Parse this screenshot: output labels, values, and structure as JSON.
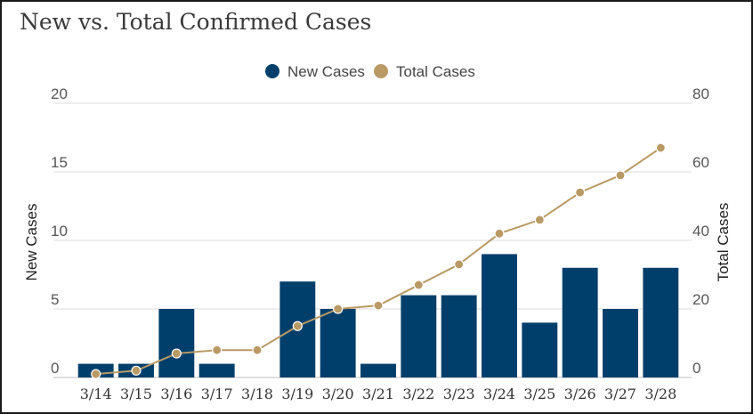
{
  "chart_data": {
    "type": "bar",
    "title": "New vs. Total Confirmed Cases",
    "categories": [
      "3/14",
      "3/15",
      "3/16",
      "3/17",
      "3/18",
      "3/19",
      "3/20",
      "3/21",
      "3/22",
      "3/23",
      "3/24",
      "3/25",
      "3/26",
      "3/27",
      "3/28"
    ],
    "series": [
      {
        "name": "New Cases",
        "type": "bar",
        "axis": "left",
        "color": "#003f6b",
        "values": [
          1,
          1,
          5,
          1,
          0,
          7,
          5,
          1,
          6,
          6,
          9,
          4,
          8,
          5,
          8
        ]
      },
      {
        "name": "Total Cases",
        "type": "line",
        "axis": "right",
        "color": "#b99a65",
        "values": [
          1,
          2,
          7,
          8,
          8,
          15,
          20,
          21,
          27,
          33,
          42,
          46,
          54,
          59,
          67
        ]
      }
    ],
    "ylabel": "New Cases",
    "y2label": "Total Cases",
    "ylim": [
      0,
      20
    ],
    "y2lim": [
      0,
      80
    ],
    "yticks": [
      0,
      5,
      10,
      15,
      20
    ],
    "y2ticks": [
      0,
      20,
      40,
      60,
      80
    ],
    "grid": true,
    "legend_position": "top-center"
  }
}
